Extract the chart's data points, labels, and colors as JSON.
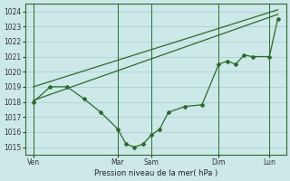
{
  "background_color": "#cce8e8",
  "grid_color": "#aacccc",
  "line_color": "#2d6a2d",
  "xlabel": "Pression niveau de la mer( hPa )",
  "ylim": [
    1014.5,
    1024.5
  ],
  "yticks": [
    1015,
    1016,
    1017,
    1018,
    1019,
    1020,
    1021,
    1022,
    1023,
    1024
  ],
  "xtick_labels": [
    "Ven",
    "Mar",
    "Sam",
    "Dim",
    "Lun"
  ],
  "xtick_positions": [
    0,
    5,
    7,
    11,
    14
  ],
  "xlim": [
    -0.5,
    15.0
  ],
  "vline_positions": [
    0,
    5,
    7,
    11,
    14
  ],
  "line1_x": [
    0,
    1,
    2,
    3,
    4,
    5,
    5.5,
    6,
    6.5,
    7,
    7.5,
    8,
    9,
    10,
    11,
    11.5,
    12,
    12.5,
    13,
    14,
    14.5
  ],
  "line1_y": [
    1018.0,
    1019.0,
    1019.0,
    1018.2,
    1017.3,
    1016.2,
    1015.2,
    1015.0,
    1015.2,
    1015.8,
    1016.2,
    1017.3,
    1017.7,
    1017.8,
    1020.5,
    1020.7,
    1020.5,
    1021.1,
    1021.0,
    1021.0,
    1023.5
  ],
  "line2_x": [
    0,
    14.5
  ],
  "line2_y": [
    1018.1,
    1023.8
  ],
  "line3_x": [
    0,
    14.5
  ],
  "line3_y": [
    1019.0,
    1024.1
  ],
  "marker": "D",
  "markersize": 2.0,
  "linewidth": 0.9,
  "smooth_linewidth": 0.9
}
